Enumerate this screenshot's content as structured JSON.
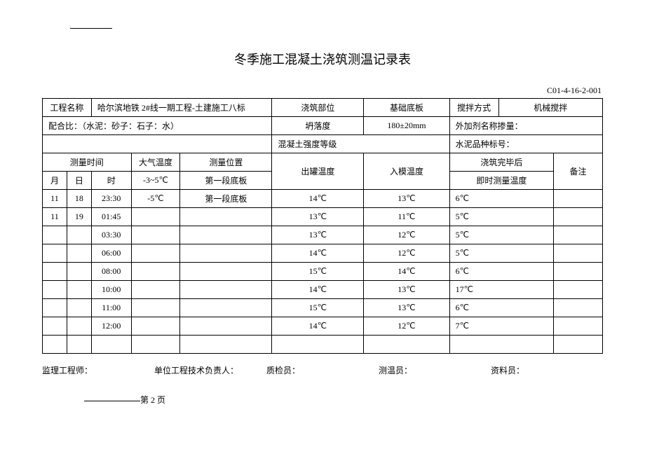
{
  "title": "冬季施工混凝土浇筑测温记录表",
  "doc_code": "C01-4-16-2-001",
  "header": {
    "project_name_label": "工程名称",
    "project_name": "哈尔滨地铁 2#线一期工程-土建施工八标",
    "pour_part_label": "浇筑部位",
    "pour_part": "基础底板",
    "mix_method_label": "搅拌方式",
    "mix_method": "机械搅拌",
    "mix_ratio_label": "配合比：（水泥：砂子：石子：水）",
    "slump_label": "坍落度",
    "slump": "180±20mm",
    "additive_label": "外加剂名称掺量：",
    "strength_label": "混凝土强度等级",
    "cement_label": "水泥品种标号："
  },
  "columns": {
    "measure_time": "测量时间",
    "air_temp": "大气温度",
    "measure_pos": "测量位置",
    "month": "月",
    "day": "日",
    "hour": "时",
    "air_temp_val": "-3~5℃",
    "measure_pos_val": "第一段底板",
    "out_temp": "出罐温度",
    "in_temp": "入模温度",
    "after_pour": "浇筑完毕后",
    "instant_temp": "即时测量温度",
    "remark": "备注"
  },
  "rows": [
    {
      "month": "11",
      "day": "18",
      "hour": "23:30",
      "air": "-5℃",
      "pos": "第一段底板",
      "out": "14℃",
      "in": "13℃",
      "after": "6℃",
      "remark": ""
    },
    {
      "month": "11",
      "day": "19",
      "hour": "01:45",
      "air": "",
      "pos": "",
      "out": "13℃",
      "in": "11℃",
      "after": "5℃",
      "remark": ""
    },
    {
      "month": "",
      "day": "",
      "hour": "03:30",
      "air": "",
      "pos": "",
      "out": "13℃",
      "in": "12℃",
      "after": "5℃",
      "remark": ""
    },
    {
      "month": "",
      "day": "",
      "hour": "06:00",
      "air": "",
      "pos": "",
      "out": "14℃",
      "in": "12℃",
      "after": "5℃",
      "remark": ""
    },
    {
      "month": "",
      "day": "",
      "hour": "08:00",
      "air": "",
      "pos": "",
      "out": "15℃",
      "in": "14℃",
      "after": "6℃",
      "remark": ""
    },
    {
      "month": "",
      "day": "",
      "hour": "10:00",
      "air": "",
      "pos": "",
      "out": "14℃",
      "in": "13℃",
      "after": "17℃",
      "remark": ""
    },
    {
      "month": "",
      "day": "",
      "hour": "11:00",
      "air": "",
      "pos": "",
      "out": "15℃",
      "in": "13℃",
      "after": "6℃",
      "remark": ""
    },
    {
      "month": "",
      "day": "",
      "hour": "12:00",
      "air": "",
      "pos": "",
      "out": "14℃",
      "in": "12℃",
      "after": "7℃",
      "remark": ""
    },
    {
      "month": "",
      "day": "",
      "hour": "",
      "air": "",
      "pos": "",
      "out": "",
      "in": "",
      "after": "",
      "remark": ""
    }
  ],
  "footer": {
    "supervisor": "监理工程师：",
    "tech_lead": "单位工程技术负责人：",
    "qc": "质检员：",
    "measurer": "测温员：",
    "archivist": "资料员："
  },
  "page": "第 2 页"
}
